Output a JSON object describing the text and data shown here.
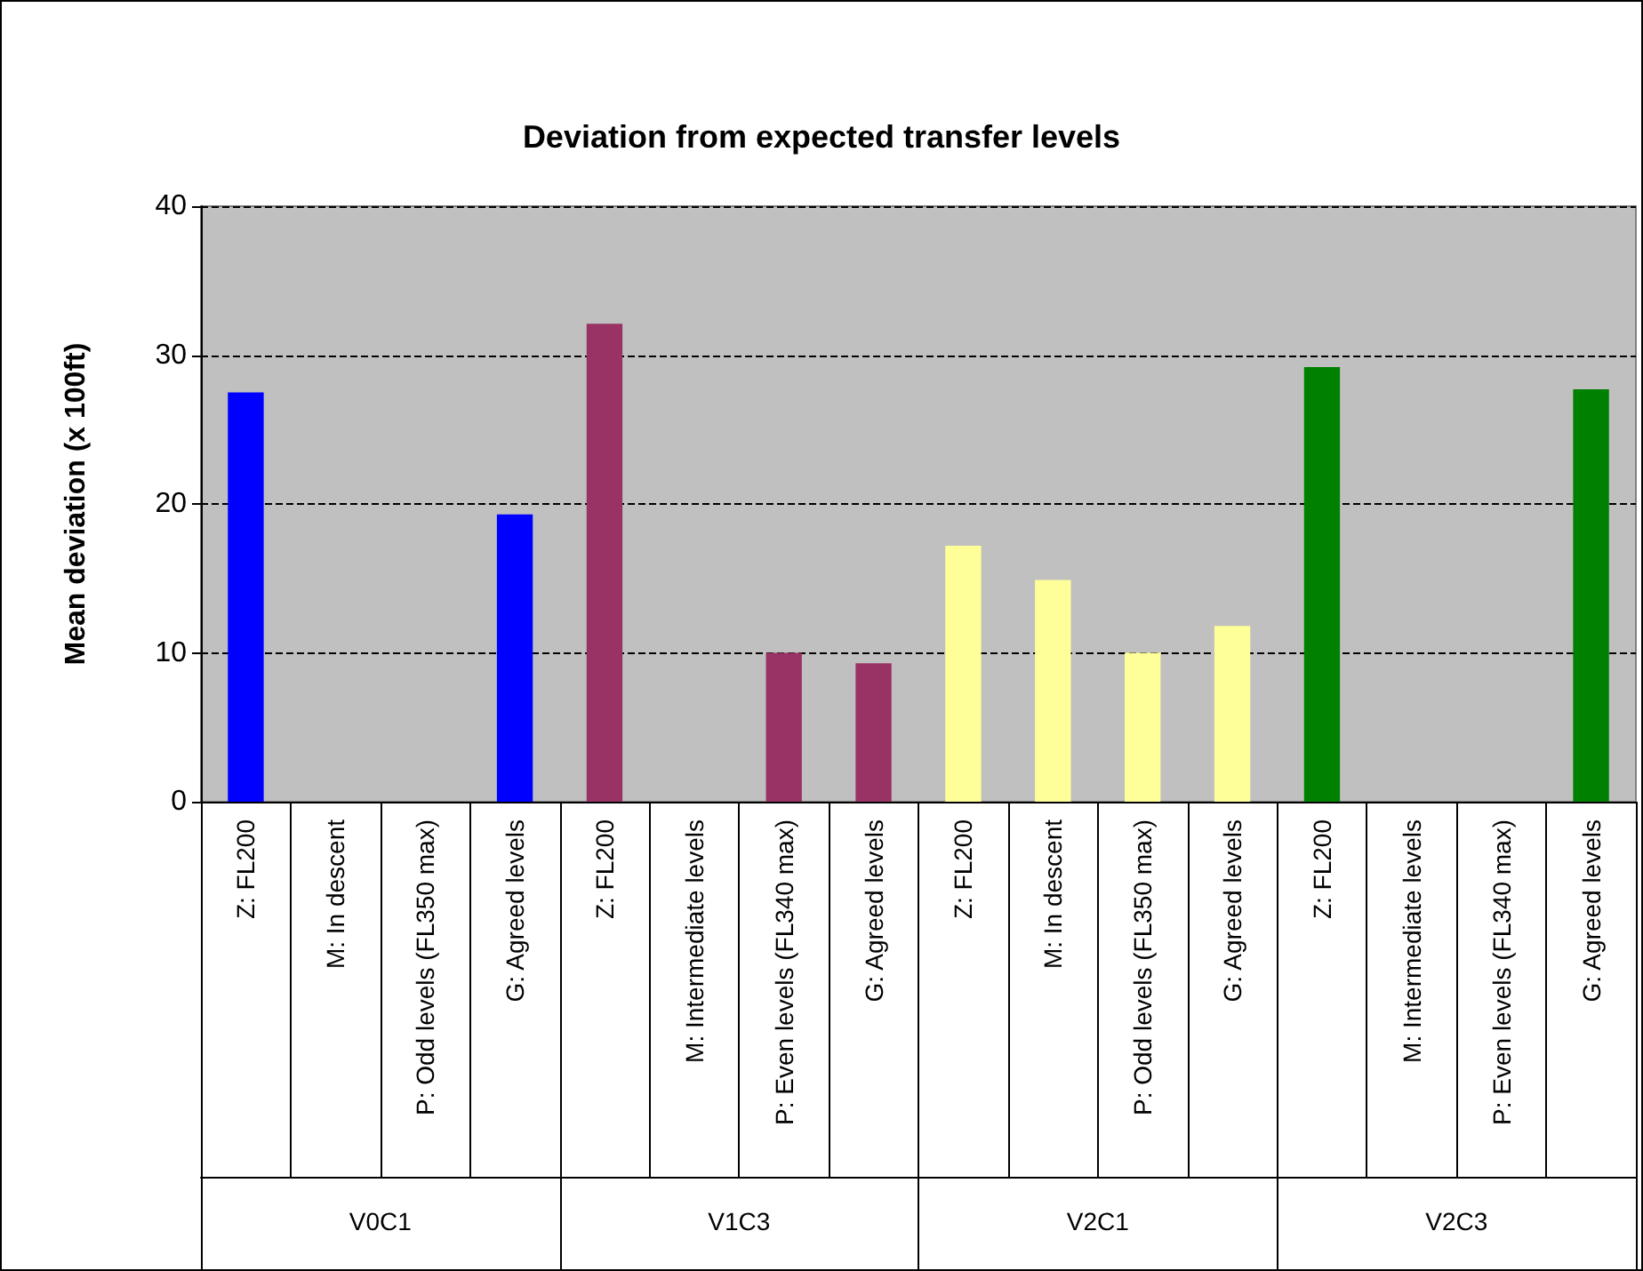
{
  "chart_data": {
    "type": "bar",
    "title": "Deviation from expected transfer levels",
    "ylabel": "Mean deviation (x 100ft)",
    "categories": [
      "Z: FL200",
      "M: In descent",
      "P: Odd levels (FL350 max)",
      "G: Agreed levels",
      "Z: FL200",
      "M: Intermediate levels",
      "P: Even levels (FL340 max)",
      "G: Agreed levels",
      "Z: FL200",
      "M: In descent",
      "P: Odd levels (FL350 max)",
      "G: Agreed levels",
      "Z: FL200",
      "M: Intermediate levels",
      "P: Even levels (FL340 max)",
      "G: Agreed levels"
    ],
    "annotations": [
      "V0C1",
      "V1C3",
      "V2C1",
      "V2C3"
    ],
    "values": [
      27.5,
      null,
      null,
      19.3,
      32.1,
      null,
      10.0,
      9.3,
      17.2,
      14.9,
      10.0,
      11.8,
      29.2,
      null,
      null,
      27.7
    ],
    "colors": [
      "#0000ff",
      null,
      null,
      "#0000ff",
      "#993366",
      null,
      "#993366",
      "#993366",
      "#ffff99",
      "#ffff99",
      "#ffff99",
      "#ffff99",
      "#008000",
      null,
      null,
      "#008000"
    ],
    "ylim": [
      0,
      40
    ],
    "yticks": [
      0,
      10,
      20,
      30,
      40
    ],
    "grid": "y",
    "line_style": "dashed"
  }
}
